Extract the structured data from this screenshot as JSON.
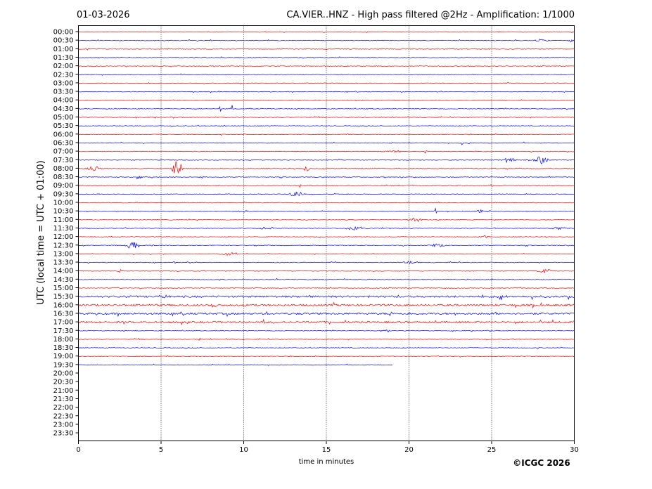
{
  "header": {
    "date": "01-03-2026",
    "title": "CA.VIER..HNZ - High pass filtered @2Hz - Amplification: 1/1000"
  },
  "footer": {
    "copyright": "©ICGC 2026"
  },
  "chart_data": {
    "type": "line",
    "subtype": "helicorder",
    "xlabel": "time in minutes",
    "ylabel": "UTC (local time = UTC + 01:00)",
    "xlim": [
      0,
      30
    ],
    "x_ticks": [
      0,
      5,
      10,
      15,
      20,
      25,
      30
    ],
    "x_tick_labels": [
      "0",
      "5",
      "10",
      "15",
      "20",
      "25",
      "30"
    ],
    "vertical_gridlines_at": [
      5,
      10,
      15,
      20,
      25
    ],
    "row_labels": [
      "00:00",
      "00:30",
      "01:00",
      "01:30",
      "02:00",
      "02:30",
      "03:00",
      "03:30",
      "04:00",
      "04:30",
      "05:00",
      "05:30",
      "06:00",
      "06:30",
      "07:00",
      "07:30",
      "08:00",
      "08:30",
      "09:00",
      "09:30",
      "10:00",
      "10:30",
      "11:00",
      "11:30",
      "12:00",
      "12:30",
      "13:00",
      "13:30",
      "14:00",
      "14:30",
      "15:00",
      "15:30",
      "16:00",
      "16:30",
      "17:00",
      "17:30",
      "18:00",
      "18:30",
      "19:00",
      "19:30",
      "20:00",
      "20:30",
      "21:00",
      "21:30",
      "22:00",
      "22:30",
      "23:00",
      "23:30"
    ],
    "trace_colors": [
      "#ff0000",
      "#0000ff"
    ],
    "traces_recorded_through": "19:30",
    "last_trace_end_minute": 19,
    "events": [
      {
        "row": "00:30",
        "minute": 28.0,
        "amplitude": 0.18,
        "width": 1.2
      },
      {
        "row": "00:30",
        "minute": 29.8,
        "amplitude": 0.15,
        "width": 0.3
      },
      {
        "row": "01:00",
        "minute": 0.6,
        "amplitude": 0.25,
        "width": 0.1
      },
      {
        "row": "04:30",
        "minute": 8.6,
        "amplitude": 0.35,
        "width": 0.1
      },
      {
        "row": "04:30",
        "minute": 9.3,
        "amplitude": 0.45,
        "width": 0.1
      },
      {
        "row": "05:30",
        "minute": 8.8,
        "amplitude": 0.25,
        "width": 0.1
      },
      {
        "row": "06:30",
        "minute": 23.2,
        "amplitude": 0.2,
        "width": 0.1
      },
      {
        "row": "06:30",
        "minute": 23.6,
        "amplitude": 0.2,
        "width": 0.1
      },
      {
        "row": "07:00",
        "minute": 19.0,
        "amplitude": 0.15,
        "width": 1.5
      },
      {
        "row": "07:00",
        "minute": 21.0,
        "amplitude": 0.25,
        "width": 0.2
      },
      {
        "row": "07:30",
        "minute": 26.0,
        "amplitude": 0.35,
        "width": 1.0
      },
      {
        "row": "07:30",
        "minute": 28.0,
        "amplitude": 0.55,
        "width": 1.0
      },
      {
        "row": "08:00",
        "minute": 0.9,
        "amplitude": 0.35,
        "width": 1.2
      },
      {
        "row": "08:00",
        "minute": 6.0,
        "amplitude": 1.1,
        "width": 0.8
      },
      {
        "row": "08:00",
        "minute": 13.8,
        "amplitude": 0.4,
        "width": 0.4
      },
      {
        "row": "08:30",
        "minute": 3.6,
        "amplitude": 0.25,
        "width": 0.6
      },
      {
        "row": "08:30",
        "minute": 7.5,
        "amplitude": 0.2,
        "width": 0.5
      },
      {
        "row": "09:00",
        "minute": 13.4,
        "amplitude": 0.25,
        "width": 0.2
      },
      {
        "row": "09:00",
        "minute": 25.0,
        "amplitude": 0.2,
        "width": 0.2
      },
      {
        "row": "09:30",
        "minute": 13.2,
        "amplitude": 0.3,
        "width": 1.2
      },
      {
        "row": "10:30",
        "minute": 10.0,
        "amplitude": 0.2,
        "width": 0.8
      },
      {
        "row": "10:30",
        "minute": 21.6,
        "amplitude": 0.45,
        "width": 0.1
      },
      {
        "row": "10:30",
        "minute": 24.3,
        "amplitude": 0.3,
        "width": 0.5
      },
      {
        "row": "11:00",
        "minute": 20.4,
        "amplitude": 0.25,
        "width": 1.2
      },
      {
        "row": "11:30",
        "minute": 9.9,
        "amplitude": 0.4,
        "width": 0.1
      },
      {
        "row": "11:30",
        "minute": 11.5,
        "amplitude": 0.2,
        "width": 1.2
      },
      {
        "row": "11:30",
        "minute": 16.8,
        "amplitude": 0.25,
        "width": 1.5
      },
      {
        "row": "11:30",
        "minute": 29.0,
        "amplitude": 0.2,
        "width": 1.0
      },
      {
        "row": "12:00",
        "minute": 24.5,
        "amplitude": 0.2,
        "width": 1.0
      },
      {
        "row": "12:30",
        "minute": 3.3,
        "amplitude": 0.6,
        "width": 1.0
      },
      {
        "row": "12:30",
        "minute": 4.5,
        "amplitude": 0.4,
        "width": 0.1
      },
      {
        "row": "12:30",
        "minute": 21.7,
        "amplitude": 0.25,
        "width": 1.2
      },
      {
        "row": "13:00",
        "minute": 9.1,
        "amplitude": 0.25,
        "width": 1.2
      },
      {
        "row": "13:30",
        "minute": 5.8,
        "amplitude": 0.45,
        "width": 0.1
      },
      {
        "row": "13:30",
        "minute": 20.0,
        "amplitude": 0.25,
        "width": 0.8
      },
      {
        "row": "14:00",
        "minute": 28.3,
        "amplitude": 0.3,
        "width": 1.0
      },
      {
        "row": "14:00",
        "minute": 2.5,
        "amplitude": 0.2,
        "width": 0.3
      },
      {
        "row": "14:30",
        "minute": 12.0,
        "amplitude": 0.3,
        "width": 0.1
      },
      {
        "row": "15:00",
        "minute": 25.0,
        "amplitude": 0.2,
        "width": 0.3
      },
      {
        "row": "15:30",
        "minute": 5.2,
        "amplitude": 0.25,
        "width": 0.6
      },
      {
        "row": "15:30",
        "minute": 25.6,
        "amplitude": 0.35,
        "width": 0.6
      },
      {
        "row": "16:00",
        "minute": 8.2,
        "amplitude": 0.3,
        "width": 0.6
      },
      {
        "row": "17:00",
        "minute": 11.2,
        "amplitude": 0.3,
        "width": 0.1
      },
      {
        "row": "17:30",
        "minute": 18.5,
        "amplitude": 0.2,
        "width": 0.8
      },
      {
        "row": "18:00",
        "minute": 7.3,
        "amplitude": 0.2,
        "width": 0.1
      }
    ],
    "noisy_rows": [
      "15:30",
      "16:00",
      "16:30",
      "17:00"
    ]
  }
}
